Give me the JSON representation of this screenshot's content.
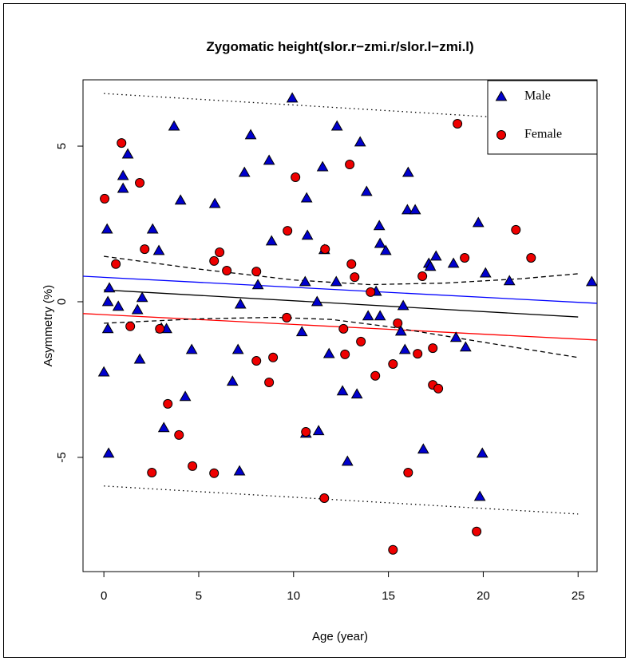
{
  "chart_data": {
    "type": "scatter",
    "title": "Zygomatic height(slor.r−zmi.r/slor.l−zmi.l)",
    "x_label": "Age (year)",
    "y_label": "Asymmetry (%)",
    "xlim": [
      -1.1,
      26.0
    ],
    "ylim": [
      -8.67,
      7.13
    ],
    "xticks": [
      0,
      5,
      10,
      15,
      20,
      25
    ],
    "yticks": [
      -5,
      0,
      5
    ],
    "legend": "topright",
    "series": [
      {
        "name": "Male",
        "color": "#0000cd",
        "marker": "triangle",
        "x": [
          0.0,
          0.17,
          0.21,
          0.21,
          0.29,
          0.25,
          0.76,
          1.01,
          1.01,
          1.26,
          1.77,
          1.89,
          2.02,
          2.57,
          2.9,
          3.03,
          3.3,
          3.16,
          3.7,
          4.04,
          4.29,
          4.63,
          5.85,
          7.2,
          6.78,
          7.07,
          7.15,
          7.41,
          7.74,
          8.12,
          8.71,
          8.84,
          9.93,
          10.44,
          10.61,
          10.69,
          10.73,
          10.65,
          11.24,
          11.32,
          11.53,
          11.62,
          11.87,
          12.25,
          12.29,
          12.58,
          12.84,
          13.34,
          13.51,
          13.85,
          13.93,
          14.35,
          14.52,
          14.56,
          14.56,
          14.86,
          15.78,
          15.66,
          15.87,
          16.04,
          16.0,
          16.41,
          16.84,
          17.13,
          17.21,
          17.51,
          18.43,
          18.56,
          19.07,
          19.74,
          19.82,
          19.95,
          20.12,
          21.38,
          25.72
        ],
        "values": [
          -2.26,
          2.33,
          0.0,
          -0.87,
          0.44,
          -4.87,
          -0.15,
          4.05,
          3.64,
          4.74,
          -0.26,
          -1.85,
          0.13,
          2.33,
          1.64,
          -0.85,
          -0.87,
          -4.05,
          5.64,
          3.26,
          -3.05,
          -1.54,
          3.15,
          -0.08,
          -2.56,
          -1.54,
          -5.44,
          4.15,
          5.36,
          0.54,
          4.54,
          1.95,
          6.54,
          -0.97,
          0.64,
          3.33,
          2.13,
          -4.23,
          0.0,
          -4.15,
          4.33,
          1.67,
          -1.67,
          0.64,
          5.64,
          -2.87,
          -5.13,
          -2.97,
          5.13,
          3.54,
          -0.46,
          0.33,
          2.44,
          1.87,
          -0.46,
          1.64,
          -0.13,
          -0.95,
          -1.54,
          4.15,
          2.95,
          2.95,
          -4.74,
          1.23,
          1.13,
          1.46,
          1.23,
          -1.15,
          -1.46,
          2.54,
          -6.26,
          -4.87,
          0.92,
          0.67,
          0.64
        ]
      },
      {
        "name": "Female",
        "color": "#ee0000",
        "marker": "circle",
        "x": [
          0.04,
          0.63,
          0.93,
          1.39,
          1.89,
          2.15,
          2.53,
          2.95,
          3.37,
          3.96,
          4.67,
          5.81,
          5.81,
          6.1,
          6.48,
          8.04,
          8.04,
          8.71,
          8.92,
          9.64,
          9.68,
          10.1,
          10.65,
          11.62,
          11.66,
          12.63,
          12.71,
          12.96,
          13.05,
          13.22,
          13.55,
          14.06,
          14.31,
          15.24,
          15.49,
          15.24,
          16.04,
          16.54,
          16.79,
          17.34,
          17.34,
          17.63,
          18.64,
          19.02,
          19.65,
          21.72,
          22.52
        ],
        "values": [
          3.31,
          1.21,
          5.1,
          -0.79,
          3.82,
          1.69,
          -5.49,
          -0.87,
          -3.28,
          -4.28,
          -5.28,
          -5.51,
          1.31,
          1.59,
          1.0,
          0.97,
          -1.9,
          -2.59,
          -1.79,
          -0.51,
          2.28,
          4.0,
          -4.18,
          -6.31,
          1.69,
          -0.87,
          -1.69,
          4.41,
          1.21,
          0.79,
          -1.28,
          0.31,
          -2.38,
          -2.0,
          -0.69,
          -7.97,
          -5.49,
          -1.67,
          0.82,
          -2.67,
          -1.49,
          -2.79,
          5.72,
          1.41,
          -7.38,
          2.31,
          1.41
        ]
      }
    ],
    "lines": [
      {
        "color": "#0000ff",
        "style": "solid",
        "x": [
          -1.1,
          26.0
        ],
        "values": [
          0.82,
          -0.05
        ]
      },
      {
        "color": "#ff0000",
        "style": "solid",
        "x": [
          -1.1,
          26.0
        ],
        "values": [
          -0.38,
          -1.23
        ]
      },
      {
        "color": "#000000",
        "style": "solid",
        "x": [
          0,
          25
        ],
        "values": [
          0.38,
          -0.49
        ]
      },
      {
        "color": "#000000",
        "style": "dashed",
        "x": [
          0,
          5,
          10,
          14,
          18,
          22,
          25
        ],
        "values": [
          1.46,
          1.05,
          0.7,
          0.55,
          0.6,
          0.74,
          0.9
        ]
      },
      {
        "color": "#000000",
        "style": "dashed",
        "x": [
          0,
          5,
          9,
          12,
          15,
          18,
          21,
          25
        ],
        "values": [
          -0.69,
          -0.55,
          -0.5,
          -0.57,
          -0.8,
          -1.1,
          -1.4,
          -1.79
        ]
      },
      {
        "color": "#000000",
        "style": "dotted",
        "x": [
          0,
          25
        ],
        "values": [
          6.69,
          5.77
        ]
      },
      {
        "color": "#000000",
        "style": "dotted",
        "x": [
          0,
          25
        ],
        "values": [
          -5.92,
          -6.82
        ]
      }
    ]
  }
}
